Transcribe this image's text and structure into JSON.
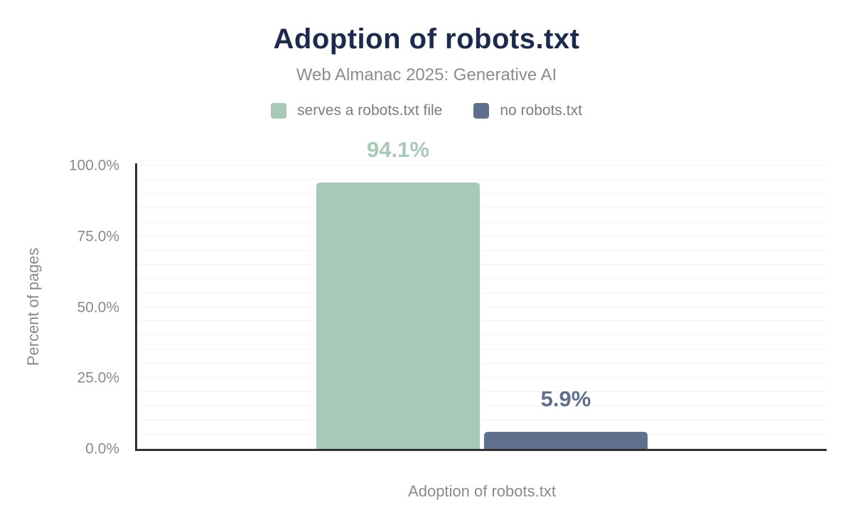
{
  "chart_data": {
    "type": "bar",
    "title": "Adoption of robots.txt",
    "subtitle": "Web Almanac 2025: Generative AI",
    "categories": [
      "Adoption of robots.txt"
    ],
    "series": [
      {
        "name": "serves a robots.txt file",
        "values": [
          94.1
        ],
        "data_label": "94.1%",
        "color": "#a7c9b7"
      },
      {
        "name": "no robots.txt",
        "values": [
          5.9
        ],
        "data_label": "5.9%",
        "color": "#5e708c"
      }
    ],
    "xlabel": "Adoption of robots.txt",
    "ylabel": "Percent of pages",
    "ylim": [
      0,
      100
    ],
    "yticks": [
      {
        "value": 0,
        "label": "0.0%"
      },
      {
        "value": 25,
        "label": "25.0%"
      },
      {
        "value": 50,
        "label": "50.0%"
      },
      {
        "value": 75,
        "label": "75.0%"
      },
      {
        "value": 100,
        "label": "100.0%"
      }
    ],
    "grid": true,
    "grid_step": 5,
    "legend_position": "top"
  },
  "colors": {
    "title": "#1c2b4d",
    "subtitle": "#8c8c8c",
    "axis_text": "#8a8a8a",
    "axis_line": "#303030",
    "gridline": "#f3f3f3",
    "background": "#ffffff",
    "serves_robots": "#a7c9b7",
    "no_robots": "#5e708c"
  }
}
